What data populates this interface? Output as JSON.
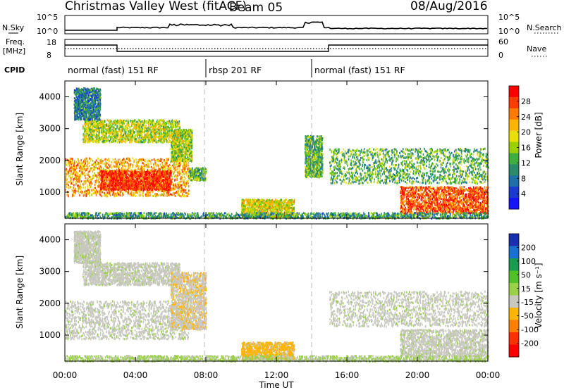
{
  "header": {
    "station": "Christmas Valley West (fitACF)",
    "beam": "Beam 05",
    "date": "08/Aug/2016"
  },
  "top_panels": {
    "nsky_label": "N.Sky",
    "nsearch_label": "N.Search",
    "pow_hi": "10^5",
    "pow_lo": "10^0",
    "freq_label_1": "Freq.",
    "freq_label_2": "[MHz]",
    "freq_hi": "18",
    "freq_lo": "8",
    "nave_label": "Nave",
    "nave_hi": "60",
    "nave_lo": "0",
    "cpid_label": "CPID"
  },
  "modes": [
    {
      "label": "normal (fast) 151 RF",
      "start_hour": 0,
      "end_hour": 8
    },
    {
      "label": "rbsp 201 RF",
      "start_hour": 8,
      "end_hour": 14
    },
    {
      "label": "normal (fast) 151 RF",
      "start_hour": 14,
      "end_hour": 24
    }
  ],
  "axes": {
    "ylabel": "Slant Range [km]",
    "xlabel": "Time UT",
    "x_ticks": [
      "00:00",
      "04:00",
      "08:00",
      "12:00",
      "16:00",
      "20:00",
      "00:00"
    ],
    "y_ticks": [
      "1000",
      "2000",
      "3000",
      "4000"
    ]
  },
  "power_scale": {
    "label": "Power [dB]",
    "ticks": [
      "28",
      "24",
      "20",
      "16",
      "12",
      "8",
      "4"
    ],
    "colors": [
      "#ff0000",
      "#ff3c00",
      "#ff7a00",
      "#ffb400",
      "#e8e000",
      "#9bd000",
      "#3fb040",
      "#2a8a6a",
      "#1f6fa8",
      "#1a3ad0",
      "#1414ff"
    ]
  },
  "velocity_scale": {
    "label": "Velocity [m s⁻¹]",
    "ticks": [
      "200",
      "100",
      "50",
      "15",
      "-15",
      "-50",
      "-100",
      "-200"
    ],
    "colors": [
      "#1a2fb0",
      "#1a6fd0",
      "#1a9a50",
      "#52c02a",
      "#9ad04a",
      "#c8c8c0",
      "#ffb400",
      "#ff8000",
      "#ff3000",
      "#ff0000"
    ]
  },
  "chart_data": [
    {
      "type": "heatmap",
      "title": "Power",
      "xlabel": "Time UT",
      "ylabel": "Slant Range [km]",
      "x_range_hours": [
        0,
        24
      ],
      "y_range_km": [
        180,
        4500
      ],
      "colorbar": "Power [dB]",
      "colorbar_ticks": [
        28,
        24,
        20,
        16,
        12,
        8,
        4
      ],
      "mode_boundaries_hours": [
        8,
        14
      ],
      "scatter_regions": [
        {
          "t": [
            0.0,
            7.0
          ],
          "r": [
            900,
            2100
          ],
          "power_db": 22
        },
        {
          "t": [
            2.0,
            6.0
          ],
          "r": [
            1100,
            1700
          ],
          "power_db": 28
        },
        {
          "t": [
            1.0,
            6.5
          ],
          "r": [
            2600,
            3300
          ],
          "power_db": 16
        },
        {
          "t": [
            0.5,
            2.0
          ],
          "r": [
            3300,
            4300
          ],
          "power_db": 8
        },
        {
          "t": [
            6.0,
            7.2
          ],
          "r": [
            2000,
            3000
          ],
          "power_db": 15
        },
        {
          "t": [
            7.0,
            8.0
          ],
          "r": [
            1400,
            1800
          ],
          "power_db": 12
        },
        {
          "t": [
            10.0,
            13.0
          ],
          "r": [
            250,
            800
          ],
          "power_db": 18
        },
        {
          "t": [
            13.6,
            14.6
          ],
          "r": [
            1500,
            2800
          ],
          "power_db": 12
        },
        {
          "t": [
            15.0,
            24.0
          ],
          "r": [
            1300,
            2400
          ],
          "power_db": 12
        },
        {
          "t": [
            19.0,
            24.0
          ],
          "r": [
            350,
            1200
          ],
          "power_db": 26
        },
        {
          "t": [
            0.0,
            24.0
          ],
          "r": [
            200,
            380
          ],
          "power_db": 10
        }
      ]
    },
    {
      "type": "heatmap",
      "title": "Velocity",
      "xlabel": "Time UT",
      "ylabel": "Slant Range [km]",
      "x_range_hours": [
        0,
        24
      ],
      "y_range_km": [
        180,
        4500
      ],
      "colorbar": "Velocity [m s⁻¹]",
      "colorbar_ticks": [
        200,
        100,
        50,
        15,
        -15,
        -50,
        -100,
        -200
      ],
      "mode_boundaries_hours": [
        8,
        14
      ],
      "scatter_regions": [
        {
          "t": [
            0.0,
            7.0
          ],
          "r": [
            900,
            2100
          ],
          "velocity": 0
        },
        {
          "t": [
            1.0,
            6.5
          ],
          "r": [
            2600,
            3300
          ],
          "velocity": 0
        },
        {
          "t": [
            0.5,
            2.0
          ],
          "r": [
            3300,
            4300
          ],
          "velocity": 0
        },
        {
          "t": [
            6.0,
            8.0
          ],
          "r": [
            1200,
            3000
          ],
          "velocity": -40
        },
        {
          "t": [
            10.0,
            13.0
          ],
          "r": [
            250,
            800
          ],
          "velocity": -60
        },
        {
          "t": [
            15.0,
            24.0
          ],
          "r": [
            1300,
            2400
          ],
          "velocity": 0
        },
        {
          "t": [
            19.0,
            24.0
          ],
          "r": [
            350,
            1200
          ],
          "velocity": 0
        },
        {
          "t": [
            0.0,
            24.0
          ],
          "r": [
            200,
            380
          ],
          "velocity": 20
        }
      ]
    }
  ]
}
